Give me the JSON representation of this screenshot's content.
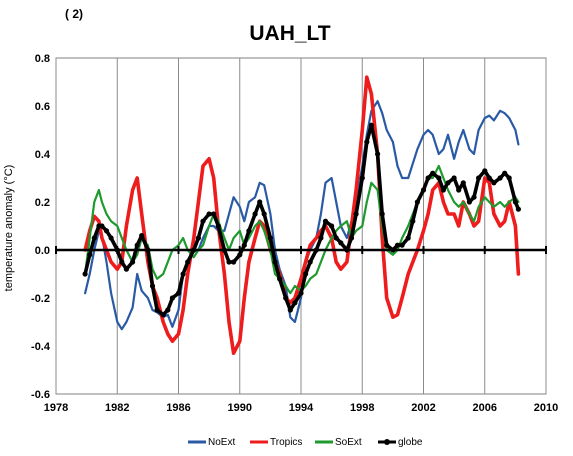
{
  "chart_data": {
    "type": "line",
    "panel_label": "( 2)",
    "title": "UAH_LT",
    "xlabel": "",
    "ylabel": "temperature anomaly (°C)",
    "xlim": [
      1978,
      2010
    ],
    "ylim": [
      -0.6,
      0.8
    ],
    "x_ticks": [
      "1978",
      "1982",
      "1986",
      "1990",
      "1994",
      "1998",
      "2002",
      "2006",
      "2010"
    ],
    "y_ticks": [
      "0.8",
      "0.6",
      "0.4",
      "0.2",
      "0.0",
      "-0.2",
      "-0.4",
      "-0.6"
    ],
    "grid": "vertical",
    "legend_position": "bottom",
    "series": [
      {
        "name": "NoExt",
        "color": "#2a5aa6",
        "marker": "none",
        "x": [
          1979.9,
          1980.2,
          1980.5,
          1980.8,
          1981.0,
          1981.3,
          1981.6,
          1982.0,
          1982.3,
          1982.6,
          1983.0,
          1983.3,
          1983.6,
          1984.0,
          1984.3,
          1984.6,
          1985.0,
          1985.3,
          1985.6,
          1986.0,
          1986.3,
          1986.6,
          1987.0,
          1987.3,
          1987.6,
          1988.0,
          1988.3,
          1988.6,
          1989.0,
          1989.3,
          1989.6,
          1990.0,
          1990.3,
          1990.6,
          1991.0,
          1991.3,
          1991.6,
          1992.0,
          1992.3,
          1992.6,
          1993.0,
          1993.3,
          1993.6,
          1994.0,
          1994.3,
          1994.6,
          1995.0,
          1995.3,
          1995.6,
          1996.0,
          1996.3,
          1996.6,
          1997.0,
          1997.3,
          1997.6,
          1998.0,
          1998.3,
          1998.6,
          1999.0,
          1999.3,
          1999.6,
          2000.0,
          2000.3,
          2000.6,
          2001.0,
          2001.3,
          2001.6,
          2002.0,
          2002.3,
          2002.6,
          2003.0,
          2003.3,
          2003.6,
          2004.0,
          2004.3,
          2004.6,
          2005.0,
          2005.3,
          2005.6,
          2006.0,
          2006.3,
          2006.6,
          2007.0,
          2007.3,
          2007.6,
          2008.0,
          2008.2
        ],
        "y": [
          -0.18,
          -0.1,
          0.0,
          0.08,
          0.06,
          -0.05,
          -0.18,
          -0.3,
          -0.33,
          -0.3,
          -0.24,
          -0.1,
          -0.17,
          -0.2,
          -0.25,
          -0.26,
          -0.28,
          -0.27,
          -0.32,
          -0.25,
          -0.1,
          -0.05,
          0.0,
          0.0,
          0.05,
          0.1,
          0.1,
          0.08,
          0.08,
          0.15,
          0.22,
          0.18,
          0.12,
          0.2,
          0.22,
          0.28,
          0.27,
          0.15,
          0.0,
          -0.08,
          -0.15,
          -0.28,
          -0.3,
          -0.2,
          -0.05,
          0.0,
          0.05,
          0.15,
          0.28,
          0.3,
          0.2,
          0.1,
          0.05,
          0.12,
          0.2,
          0.35,
          0.48,
          0.58,
          0.62,
          0.57,
          0.5,
          0.45,
          0.35,
          0.3,
          0.3,
          0.36,
          0.42,
          0.48,
          0.5,
          0.48,
          0.4,
          0.42,
          0.48,
          0.38,
          0.45,
          0.5,
          0.42,
          0.4,
          0.5,
          0.55,
          0.56,
          0.54,
          0.58,
          0.57,
          0.55,
          0.5,
          0.44
        ]
      },
      {
        "name": "Tropics",
        "color": "#ee1c1c",
        "marker": "none",
        "x": [
          1979.9,
          1980.2,
          1980.5,
          1980.8,
          1981.0,
          1981.3,
          1981.6,
          1982.0,
          1982.3,
          1982.6,
          1983.0,
          1983.3,
          1983.6,
          1984.0,
          1984.3,
          1984.6,
          1985.0,
          1985.3,
          1985.6,
          1986.0,
          1986.3,
          1986.6,
          1987.0,
          1987.3,
          1987.6,
          1988.0,
          1988.3,
          1988.6,
          1989.0,
          1989.3,
          1989.6,
          1990.0,
          1990.3,
          1990.6,
          1991.0,
          1991.3,
          1991.6,
          1992.0,
          1992.3,
          1992.6,
          1993.0,
          1993.3,
          1993.6,
          1994.0,
          1994.3,
          1994.6,
          1995.0,
          1995.3,
          1995.6,
          1996.0,
          1996.3,
          1996.6,
          1997.0,
          1997.3,
          1997.6,
          1998.0,
          1998.3,
          1998.6,
          1999.0,
          1999.3,
          1999.6,
          2000.0,
          2000.3,
          2000.6,
          2001.0,
          2001.3,
          2001.6,
          2002.0,
          2002.3,
          2002.6,
          2003.0,
          2003.3,
          2003.6,
          2004.0,
          2004.3,
          2004.6,
          2005.0,
          2005.3,
          2005.6,
          2006.0,
          2006.3,
          2006.6,
          2007.0,
          2007.3,
          2007.6,
          2008.0,
          2008.2
        ],
        "y": [
          0.0,
          0.08,
          0.14,
          0.12,
          0.05,
          0.0,
          -0.05,
          -0.08,
          -0.05,
          0.1,
          0.25,
          0.3,
          0.15,
          -0.05,
          -0.15,
          -0.2,
          -0.3,
          -0.35,
          -0.38,
          -0.35,
          -0.25,
          -0.1,
          0.05,
          0.2,
          0.35,
          0.38,
          0.3,
          0.1,
          -0.1,
          -0.3,
          -0.43,
          -0.38,
          -0.2,
          -0.05,
          0.05,
          0.12,
          0.1,
          0.0,
          -0.05,
          -0.1,
          -0.2,
          -0.22,
          -0.2,
          -0.12,
          -0.05,
          0.02,
          0.05,
          0.08,
          0.1,
          0.05,
          -0.05,
          -0.08,
          -0.05,
          0.1,
          0.25,
          0.5,
          0.72,
          0.65,
          0.4,
          0.05,
          -0.2,
          -0.28,
          -0.27,
          -0.2,
          -0.1,
          -0.05,
          0.0,
          0.08,
          0.15,
          0.25,
          0.28,
          0.2,
          0.15,
          0.15,
          0.1,
          0.2,
          0.15,
          0.1,
          0.12,
          0.3,
          0.28,
          0.15,
          0.1,
          0.12,
          0.2,
          0.1,
          -0.1
        ]
      },
      {
        "name": "SoExt",
        "color": "#1e9a2e",
        "marker": "none",
        "x": [
          1979.9,
          1980.2,
          1980.5,
          1980.8,
          1981.0,
          1981.3,
          1981.6,
          1982.0,
          1982.3,
          1982.6,
          1983.0,
          1983.3,
          1983.6,
          1984.0,
          1984.3,
          1984.6,
          1985.0,
          1985.3,
          1985.6,
          1986.0,
          1986.3,
          1986.6,
          1987.0,
          1987.3,
          1987.6,
          1988.0,
          1988.3,
          1988.6,
          1989.0,
          1989.3,
          1989.6,
          1990.0,
          1990.3,
          1990.6,
          1991.0,
          1991.3,
          1991.6,
          1992.0,
          1992.3,
          1992.6,
          1993.0,
          1993.3,
          1993.6,
          1994.0,
          1994.3,
          1994.6,
          1995.0,
          1995.3,
          1995.6,
          1996.0,
          1996.3,
          1996.6,
          1997.0,
          1997.3,
          1997.6,
          1998.0,
          1998.3,
          1998.6,
          1999.0,
          1999.3,
          1999.6,
          2000.0,
          2000.3,
          2000.6,
          2001.0,
          2001.3,
          2001.6,
          2002.0,
          2002.3,
          2002.6,
          2003.0,
          2003.3,
          2003.6,
          2004.0,
          2004.3,
          2004.6,
          2005.0,
          2005.3,
          2005.6,
          2006.0,
          2006.3,
          2006.6,
          2007.0,
          2007.3,
          2007.6,
          2008.0,
          2008.2
        ],
        "y": [
          -0.1,
          0.05,
          0.2,
          0.25,
          0.2,
          0.15,
          0.12,
          0.1,
          0.05,
          0.0,
          -0.05,
          -0.02,
          0.05,
          0.02,
          -0.08,
          -0.12,
          -0.1,
          -0.05,
          0.0,
          0.02,
          0.05,
          0.0,
          -0.03,
          0.0,
          0.02,
          0.1,
          0.15,
          0.12,
          0.05,
          0.0,
          0.05,
          0.08,
          0.02,
          0.05,
          0.1,
          0.12,
          0.08,
          0.0,
          -0.1,
          -0.12,
          -0.15,
          -0.18,
          -0.15,
          -0.17,
          -0.15,
          -0.12,
          -0.1,
          -0.05,
          0.0,
          0.05,
          0.08,
          0.1,
          0.12,
          0.05,
          0.08,
          0.1,
          0.2,
          0.28,
          0.25,
          0.1,
          0.0,
          -0.02,
          0.0,
          0.05,
          0.1,
          0.15,
          0.2,
          0.25,
          0.3,
          0.3,
          0.35,
          0.3,
          0.25,
          0.2,
          0.18,
          0.2,
          0.15,
          0.12,
          0.18,
          0.22,
          0.2,
          0.18,
          0.2,
          0.18,
          0.2,
          0.22,
          0.2
        ]
      },
      {
        "name": "globe",
        "color": "#000000",
        "marker": "circle",
        "x": [
          1979.9,
          1980.2,
          1980.5,
          1980.8,
          1981.0,
          1981.3,
          1981.6,
          1982.0,
          1982.3,
          1982.6,
          1983.0,
          1983.3,
          1983.6,
          1984.0,
          1984.3,
          1984.6,
          1985.0,
          1985.3,
          1985.6,
          1986.0,
          1986.3,
          1986.6,
          1987.0,
          1987.3,
          1987.6,
          1988.0,
          1988.3,
          1988.6,
          1989.0,
          1989.3,
          1989.6,
          1990.0,
          1990.3,
          1990.6,
          1991.0,
          1991.3,
          1991.6,
          1992.0,
          1992.3,
          1992.6,
          1993.0,
          1993.3,
          1993.6,
          1994.0,
          1994.3,
          1994.6,
          1995.0,
          1995.3,
          1995.6,
          1996.0,
          1996.3,
          1996.6,
          1997.0,
          1997.3,
          1997.6,
          1998.0,
          1998.3,
          1998.6,
          1999.0,
          1999.3,
          1999.6,
          2000.0,
          2000.3,
          2000.6,
          2001.0,
          2001.3,
          2001.6,
          2002.0,
          2002.3,
          2002.6,
          2003.0,
          2003.3,
          2003.6,
          2004.0,
          2004.3,
          2004.6,
          2005.0,
          2005.3,
          2005.6,
          2006.0,
          2006.3,
          2006.6,
          2007.0,
          2007.3,
          2007.6,
          2008.0,
          2008.2
        ],
        "y": [
          -0.1,
          -0.02,
          0.05,
          0.1,
          0.1,
          0.08,
          0.05,
          0.0,
          -0.05,
          -0.08,
          -0.05,
          0.02,
          0.06,
          0.0,
          -0.15,
          -0.25,
          -0.27,
          -0.25,
          -0.2,
          -0.18,
          -0.1,
          -0.05,
          0.0,
          0.05,
          0.12,
          0.15,
          0.15,
          0.1,
          0.0,
          -0.05,
          -0.05,
          -0.02,
          0.02,
          0.08,
          0.15,
          0.2,
          0.15,
          0.05,
          -0.05,
          -0.12,
          -0.2,
          -0.25,
          -0.22,
          -0.18,
          -0.1,
          -0.05,
          0.0,
          0.05,
          0.12,
          0.1,
          0.05,
          0.03,
          0.0,
          0.05,
          0.15,
          0.3,
          0.45,
          0.52,
          0.4,
          0.15,
          0.02,
          0.0,
          0.02,
          0.02,
          0.05,
          0.12,
          0.2,
          0.25,
          0.3,
          0.32,
          0.3,
          0.25,
          0.28,
          0.3,
          0.25,
          0.28,
          0.2,
          0.22,
          0.3,
          0.33,
          0.3,
          0.28,
          0.3,
          0.32,
          0.3,
          0.2,
          0.17
        ]
      }
    ]
  }
}
